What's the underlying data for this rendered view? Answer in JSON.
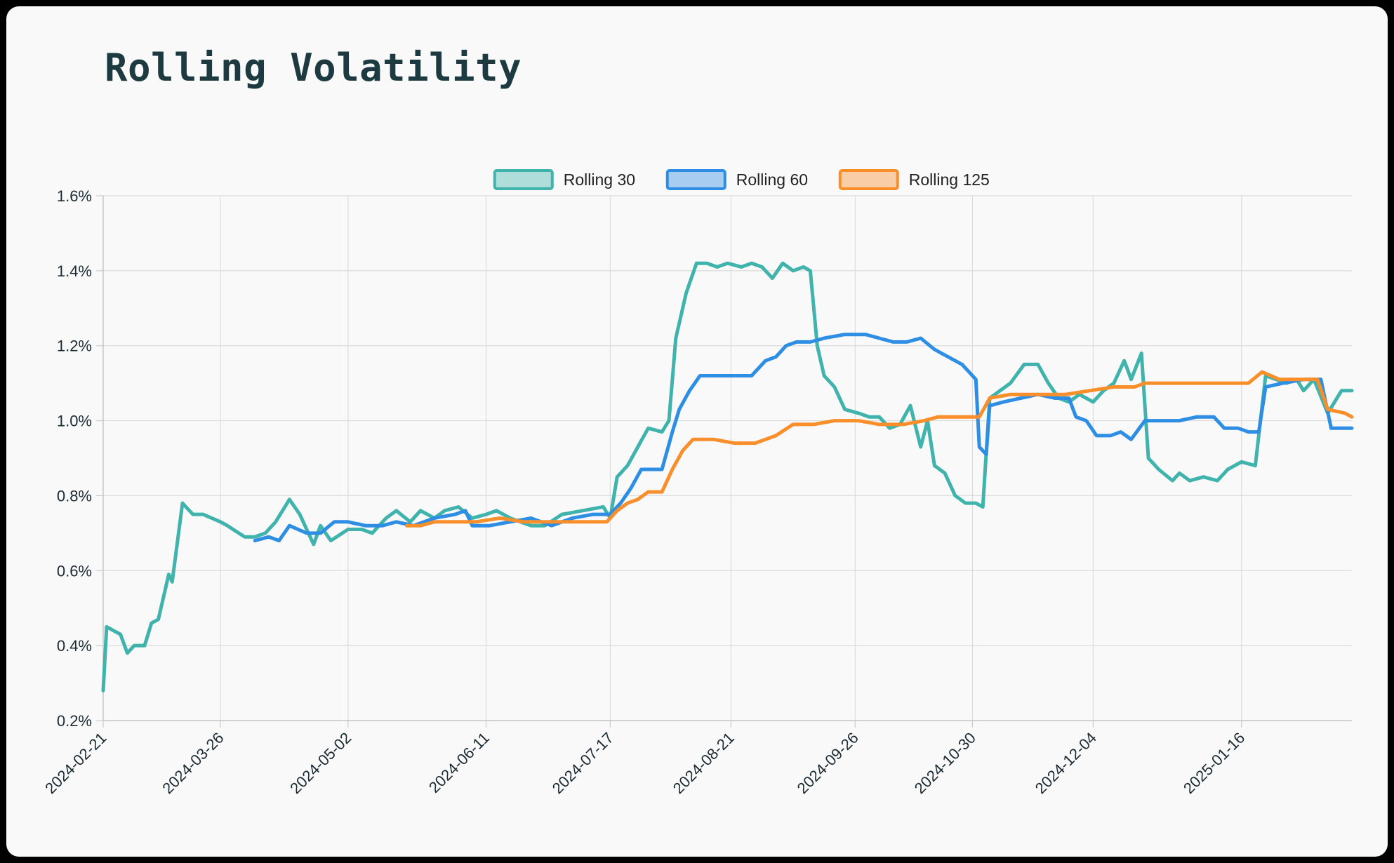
{
  "chart_data": {
    "type": "line",
    "title": "Rolling Volatility",
    "legend_position": "top-center",
    "grid": true,
    "x_start": "2024-02-21",
    "x_end": "2025-02-17",
    "x_ticks": [
      "2024-02-21",
      "2024-03-26",
      "2024-05-02",
      "2024-06-11",
      "2024-07-17",
      "2024-08-21",
      "2024-09-26",
      "2024-10-30",
      "2024-12-04",
      "2025-01-16"
    ],
    "y_ticks": [
      "0.2%",
      "0.4%",
      "0.6%",
      "0.8%",
      "1.0%",
      "1.2%",
      "1.4%",
      "1.6%"
    ],
    "ylim": [
      0.2,
      1.6
    ],
    "series": [
      {
        "name": "Rolling 30",
        "color": "#3fb3ac",
        "points": [
          [
            "2024-02-21",
            0.28
          ],
          [
            "2024-02-22",
            0.45
          ],
          [
            "2024-02-26",
            0.43
          ],
          [
            "2024-02-28",
            0.38
          ],
          [
            "2024-03-01",
            0.4
          ],
          [
            "2024-03-04",
            0.4
          ],
          [
            "2024-03-06",
            0.46
          ],
          [
            "2024-03-08",
            0.47
          ],
          [
            "2024-03-11",
            0.59
          ],
          [
            "2024-03-12",
            0.57
          ],
          [
            "2024-03-15",
            0.78
          ],
          [
            "2024-03-18",
            0.75
          ],
          [
            "2024-03-21",
            0.75
          ],
          [
            "2024-03-26",
            0.73
          ],
          [
            "2024-03-28",
            0.72
          ],
          [
            "2024-04-02",
            0.69
          ],
          [
            "2024-04-05",
            0.69
          ],
          [
            "2024-04-08",
            0.7
          ],
          [
            "2024-04-11",
            0.73
          ],
          [
            "2024-04-15",
            0.79
          ],
          [
            "2024-04-18",
            0.75
          ],
          [
            "2024-04-22",
            0.67
          ],
          [
            "2024-04-24",
            0.72
          ],
          [
            "2024-04-27",
            0.68
          ],
          [
            "2024-05-02",
            0.71
          ],
          [
            "2024-05-06",
            0.71
          ],
          [
            "2024-05-09",
            0.7
          ],
          [
            "2024-05-13",
            0.74
          ],
          [
            "2024-05-16",
            0.76
          ],
          [
            "2024-05-20",
            0.73
          ],
          [
            "2024-05-23",
            0.76
          ],
          [
            "2024-05-27",
            0.74
          ],
          [
            "2024-05-30",
            0.76
          ],
          [
            "2024-06-03",
            0.77
          ],
          [
            "2024-06-07",
            0.74
          ],
          [
            "2024-06-11",
            0.75
          ],
          [
            "2024-06-14",
            0.76
          ],
          [
            "2024-06-18",
            0.74
          ],
          [
            "2024-06-24",
            0.72
          ],
          [
            "2024-06-28",
            0.72
          ],
          [
            "2024-07-03",
            0.75
          ],
          [
            "2024-07-09",
            0.76
          ],
          [
            "2024-07-15",
            0.77
          ],
          [
            "2024-07-17",
            0.74
          ],
          [
            "2024-07-19",
            0.85
          ],
          [
            "2024-07-22",
            0.88
          ],
          [
            "2024-07-25",
            0.93
          ],
          [
            "2024-07-28",
            0.98
          ],
          [
            "2024-08-01",
            0.97
          ],
          [
            "2024-08-03",
            1.0
          ],
          [
            "2024-08-05",
            1.22
          ],
          [
            "2024-08-08",
            1.34
          ],
          [
            "2024-08-11",
            1.42
          ],
          [
            "2024-08-14",
            1.42
          ],
          [
            "2024-08-17",
            1.41
          ],
          [
            "2024-08-20",
            1.42
          ],
          [
            "2024-08-24",
            1.41
          ],
          [
            "2024-08-27",
            1.42
          ],
          [
            "2024-08-30",
            1.41
          ],
          [
            "2024-09-02",
            1.38
          ],
          [
            "2024-09-05",
            1.42
          ],
          [
            "2024-09-08",
            1.4
          ],
          [
            "2024-09-11",
            1.41
          ],
          [
            "2024-09-13",
            1.4
          ],
          [
            "2024-09-15",
            1.2
          ],
          [
            "2024-09-17",
            1.12
          ],
          [
            "2024-09-20",
            1.09
          ],
          [
            "2024-09-23",
            1.03
          ],
          [
            "2024-09-27",
            1.02
          ],
          [
            "2024-09-30",
            1.01
          ],
          [
            "2024-10-03",
            1.01
          ],
          [
            "2024-10-06",
            0.98
          ],
          [
            "2024-10-09",
            0.99
          ],
          [
            "2024-10-12",
            1.04
          ],
          [
            "2024-10-15",
            0.93
          ],
          [
            "2024-10-17",
            1.0
          ],
          [
            "2024-10-19",
            0.88
          ],
          [
            "2024-10-22",
            0.86
          ],
          [
            "2024-10-25",
            0.8
          ],
          [
            "2024-10-28",
            0.78
          ],
          [
            "2024-10-31",
            0.78
          ],
          [
            "2024-11-02",
            0.77
          ],
          [
            "2024-11-04",
            1.06
          ],
          [
            "2024-11-07",
            1.08
          ],
          [
            "2024-11-10",
            1.1
          ],
          [
            "2024-11-14",
            1.15
          ],
          [
            "2024-11-18",
            1.15
          ],
          [
            "2024-11-21",
            1.1
          ],
          [
            "2024-11-24",
            1.06
          ],
          [
            "2024-11-27",
            1.05
          ],
          [
            "2024-11-30",
            1.07
          ],
          [
            "2024-12-04",
            1.05
          ],
          [
            "2024-12-07",
            1.08
          ],
          [
            "2024-12-10",
            1.1
          ],
          [
            "2024-12-13",
            1.16
          ],
          [
            "2024-12-15",
            1.11
          ],
          [
            "2024-12-18",
            1.18
          ],
          [
            "2024-12-20",
            0.9
          ],
          [
            "2024-12-23",
            0.87
          ],
          [
            "2024-12-27",
            0.84
          ],
          [
            "2024-12-29",
            0.86
          ],
          [
            "2025-01-01",
            0.84
          ],
          [
            "2025-01-05",
            0.85
          ],
          [
            "2025-01-09",
            0.84
          ],
          [
            "2025-01-12",
            0.87
          ],
          [
            "2025-01-16",
            0.89
          ],
          [
            "2025-01-20",
            0.88
          ],
          [
            "2025-01-23",
            1.12
          ],
          [
            "2025-01-26",
            1.11
          ],
          [
            "2025-01-29",
            1.1
          ],
          [
            "2025-02-01",
            1.11
          ],
          [
            "2025-02-03",
            1.08
          ],
          [
            "2025-02-06",
            1.11
          ],
          [
            "2025-02-10",
            1.02
          ],
          [
            "2025-02-14",
            1.08
          ],
          [
            "2025-02-17",
            1.08
          ]
        ]
      },
      {
        "name": "Rolling 60",
        "color": "#2e8ee4",
        "points": [
          [
            "2024-04-05",
            0.68
          ],
          [
            "2024-04-09",
            0.69
          ],
          [
            "2024-04-12",
            0.68
          ],
          [
            "2024-04-15",
            0.72
          ],
          [
            "2024-04-20",
            0.7
          ],
          [
            "2024-04-24",
            0.7
          ],
          [
            "2024-04-28",
            0.73
          ],
          [
            "2024-05-02",
            0.73
          ],
          [
            "2024-05-07",
            0.72
          ],
          [
            "2024-05-12",
            0.72
          ],
          [
            "2024-05-16",
            0.73
          ],
          [
            "2024-05-21",
            0.72
          ],
          [
            "2024-05-27",
            0.74
          ],
          [
            "2024-06-02",
            0.75
          ],
          [
            "2024-06-05",
            0.76
          ],
          [
            "2024-06-07",
            0.72
          ],
          [
            "2024-06-12",
            0.72
          ],
          [
            "2024-06-18",
            0.73
          ],
          [
            "2024-06-24",
            0.74
          ],
          [
            "2024-06-30",
            0.72
          ],
          [
            "2024-07-06",
            0.74
          ],
          [
            "2024-07-12",
            0.75
          ],
          [
            "2024-07-17",
            0.75
          ],
          [
            "2024-07-20",
            0.78
          ],
          [
            "2024-07-23",
            0.82
          ],
          [
            "2024-07-26",
            0.87
          ],
          [
            "2024-07-29",
            0.87
          ],
          [
            "2024-08-01",
            0.87
          ],
          [
            "2024-08-04",
            0.97
          ],
          [
            "2024-08-06",
            1.03
          ],
          [
            "2024-08-09",
            1.08
          ],
          [
            "2024-08-12",
            1.12
          ],
          [
            "2024-08-17",
            1.12
          ],
          [
            "2024-08-22",
            1.12
          ],
          [
            "2024-08-27",
            1.12
          ],
          [
            "2024-08-31",
            1.16
          ],
          [
            "2024-09-03",
            1.17
          ],
          [
            "2024-09-06",
            1.2
          ],
          [
            "2024-09-09",
            1.21
          ],
          [
            "2024-09-13",
            1.21
          ],
          [
            "2024-09-17",
            1.22
          ],
          [
            "2024-09-23",
            1.23
          ],
          [
            "2024-09-29",
            1.23
          ],
          [
            "2024-10-03",
            1.22
          ],
          [
            "2024-10-07",
            1.21
          ],
          [
            "2024-10-11",
            1.21
          ],
          [
            "2024-10-15",
            1.22
          ],
          [
            "2024-10-19",
            1.19
          ],
          [
            "2024-10-23",
            1.17
          ],
          [
            "2024-10-27",
            1.15
          ],
          [
            "2024-10-31",
            1.11
          ],
          [
            "2024-11-01",
            0.93
          ],
          [
            "2024-11-03",
            0.91
          ],
          [
            "2024-11-04",
            1.04
          ],
          [
            "2024-11-08",
            1.05
          ],
          [
            "2024-11-13",
            1.06
          ],
          [
            "2024-11-18",
            1.07
          ],
          [
            "2024-11-23",
            1.06
          ],
          [
            "2024-11-27",
            1.06
          ],
          [
            "2024-11-29",
            1.01
          ],
          [
            "2024-12-02",
            1.0
          ],
          [
            "2024-12-05",
            0.96
          ],
          [
            "2024-12-09",
            0.96
          ],
          [
            "2024-12-12",
            0.97
          ],
          [
            "2024-12-15",
            0.95
          ],
          [
            "2024-12-19",
            1.0
          ],
          [
            "2024-12-24",
            1.0
          ],
          [
            "2024-12-29",
            1.0
          ],
          [
            "2025-01-03",
            1.01
          ],
          [
            "2025-01-08",
            1.01
          ],
          [
            "2025-01-11",
            0.98
          ],
          [
            "2025-01-15",
            0.98
          ],
          [
            "2025-01-18",
            0.97
          ],
          [
            "2025-01-21",
            0.97
          ],
          [
            "2025-01-23",
            1.09
          ],
          [
            "2025-01-28",
            1.1
          ],
          [
            "2025-02-03",
            1.11
          ],
          [
            "2025-02-08",
            1.11
          ],
          [
            "2025-02-11",
            0.98
          ],
          [
            "2025-02-17",
            0.98
          ]
        ]
      },
      {
        "name": "Rolling 125",
        "color": "#f98f2b",
        "points": [
          [
            "2024-05-19",
            0.72
          ],
          [
            "2024-05-23",
            0.72
          ],
          [
            "2024-05-27",
            0.73
          ],
          [
            "2024-06-01",
            0.73
          ],
          [
            "2024-06-08",
            0.73
          ],
          [
            "2024-06-15",
            0.74
          ],
          [
            "2024-06-22",
            0.73
          ],
          [
            "2024-06-29",
            0.73
          ],
          [
            "2024-07-06",
            0.73
          ],
          [
            "2024-07-12",
            0.73
          ],
          [
            "2024-07-16",
            0.73
          ],
          [
            "2024-07-19",
            0.76
          ],
          [
            "2024-07-22",
            0.78
          ],
          [
            "2024-07-25",
            0.79
          ],
          [
            "2024-07-28",
            0.81
          ],
          [
            "2024-08-01",
            0.81
          ],
          [
            "2024-08-04",
            0.87
          ],
          [
            "2024-08-07",
            0.92
          ],
          [
            "2024-08-10",
            0.95
          ],
          [
            "2024-08-16",
            0.95
          ],
          [
            "2024-08-22",
            0.94
          ],
          [
            "2024-08-28",
            0.94
          ],
          [
            "2024-09-03",
            0.96
          ],
          [
            "2024-09-08",
            0.99
          ],
          [
            "2024-09-14",
            0.99
          ],
          [
            "2024-09-20",
            1.0
          ],
          [
            "2024-09-27",
            1.0
          ],
          [
            "2024-10-03",
            0.99
          ],
          [
            "2024-10-10",
            0.99
          ],
          [
            "2024-10-16",
            1.0
          ],
          [
            "2024-10-20",
            1.01
          ],
          [
            "2024-10-26",
            1.01
          ],
          [
            "2024-11-01",
            1.01
          ],
          [
            "2024-11-04",
            1.06
          ],
          [
            "2024-11-10",
            1.07
          ],
          [
            "2024-11-18",
            1.07
          ],
          [
            "2024-11-26",
            1.07
          ],
          [
            "2024-12-03",
            1.08
          ],
          [
            "2024-12-10",
            1.09
          ],
          [
            "2024-12-16",
            1.09
          ],
          [
            "2024-12-19",
            1.1
          ],
          [
            "2024-12-27",
            1.1
          ],
          [
            "2025-01-04",
            1.1
          ],
          [
            "2025-01-12",
            1.1
          ],
          [
            "2025-01-18",
            1.1
          ],
          [
            "2025-01-22",
            1.13
          ],
          [
            "2025-01-27",
            1.11
          ],
          [
            "2025-02-02",
            1.11
          ],
          [
            "2025-02-07",
            1.11
          ],
          [
            "2025-02-10",
            1.03
          ],
          [
            "2025-02-15",
            1.02
          ],
          [
            "2025-02-17",
            1.01
          ]
        ]
      }
    ]
  }
}
